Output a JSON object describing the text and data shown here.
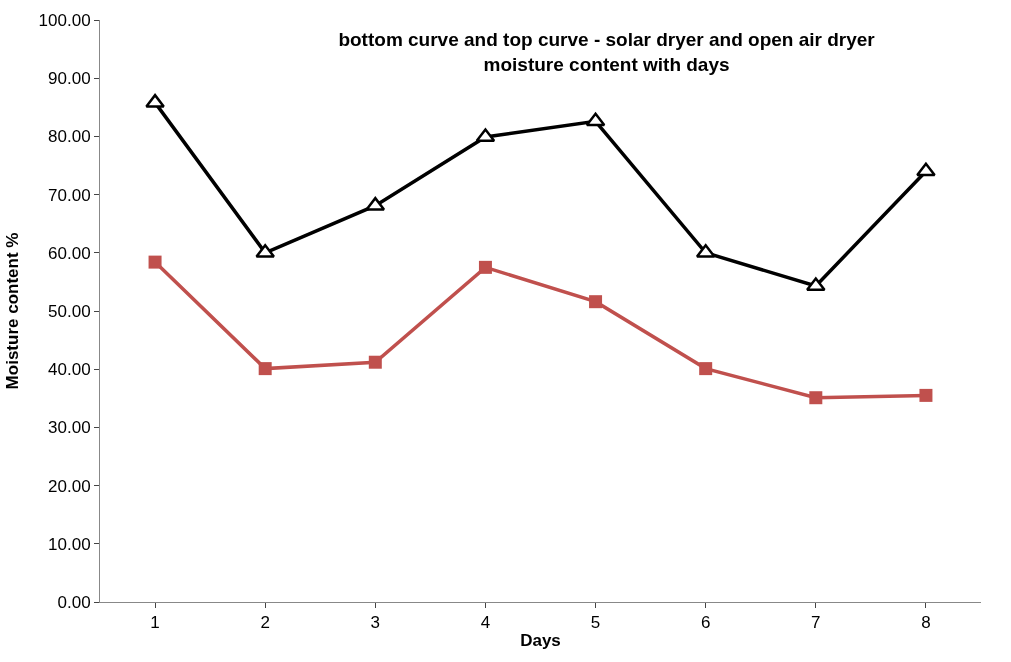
{
  "chart_data": {
    "type": "line",
    "title": "bottom curve and top curve - solar dryer and open air dryer\nmoisture content with days",
    "xlabel": "Days",
    "ylabel": "Moisture content %",
    "categories": [
      "1",
      "2",
      "3",
      "4",
      "5",
      "6",
      "7",
      "8"
    ],
    "series": [
      {
        "color": "#000000",
        "marker": "triangle",
        "values": [
          85.8,
          60.0,
          68.1,
          79.9,
          82.6,
          60.0,
          54.3,
          74.0
        ]
      },
      {
        "color": "#c0504d",
        "marker": "square",
        "values": [
          58.4,
          40.1,
          41.2,
          57.5,
          51.6,
          40.1,
          35.1,
          35.5
        ]
      }
    ],
    "ylim": [
      0,
      100
    ],
    "yticks": [
      {
        "value": 0,
        "label": "0.00"
      },
      {
        "value": 10,
        "label": "10.00"
      },
      {
        "value": 20,
        "label": "20.00"
      },
      {
        "value": 30,
        "label": "30.00"
      },
      {
        "value": 40,
        "label": "40.00"
      },
      {
        "value": 50,
        "label": "50.00"
      },
      {
        "value": 60,
        "label": "60.00"
      },
      {
        "value": 70,
        "label": "70.00"
      },
      {
        "value": 80,
        "label": "80.00"
      },
      {
        "value": 90,
        "label": "90.00"
      },
      {
        "value": 100,
        "label": "100.00"
      }
    ],
    "line_style": "solid"
  }
}
